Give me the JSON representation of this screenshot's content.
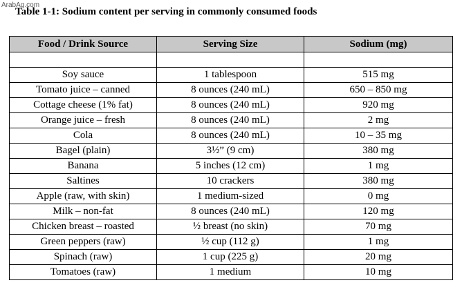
{
  "watermark": "ArabAg.com",
  "caption": "Table 1-1: Sodium content per serving in commonly consumed foods",
  "table": {
    "headers": [
      "Food / Drink Source",
      "Serving Size",
      "Sodium (mg)"
    ],
    "rows": [
      [
        "Soy sauce",
        "1 tablespoon",
        "515 mg"
      ],
      [
        "Tomato juice – canned",
        "8 ounces (240 mL)",
        "650 – 850 mg"
      ],
      [
        "Cottage cheese (1% fat)",
        "8 ounces (240 mL)",
        "920 mg"
      ],
      [
        "Orange juice – fresh",
        "8 ounces (240 mL)",
        "2 mg"
      ],
      [
        "Cola",
        "8 ounces (240 mL)",
        "10 – 35 mg"
      ],
      [
        "Bagel (plain)",
        "3½” (9 cm)",
        "380 mg"
      ],
      [
        "Banana",
        "5 inches (12 cm)",
        "1 mg"
      ],
      [
        "Saltines",
        "10 crackers",
        "380 mg"
      ],
      [
        "Apple (raw, with skin)",
        "1 medium-sized",
        "0 mg"
      ],
      [
        "Milk – non-fat",
        "8 ounces (240 mL)",
        "120 mg"
      ],
      [
        "Chicken breast – roasted",
        "½ breast (no skin)",
        "70 mg"
      ],
      [
        "Green peppers (raw)",
        "½ cup (112 g)",
        "1 mg"
      ],
      [
        "Spinach (raw)",
        "1 cup (225 g)",
        "20 mg"
      ],
      [
        "Tomatoes (raw)",
        "1 medium",
        "10  mg"
      ]
    ]
  }
}
